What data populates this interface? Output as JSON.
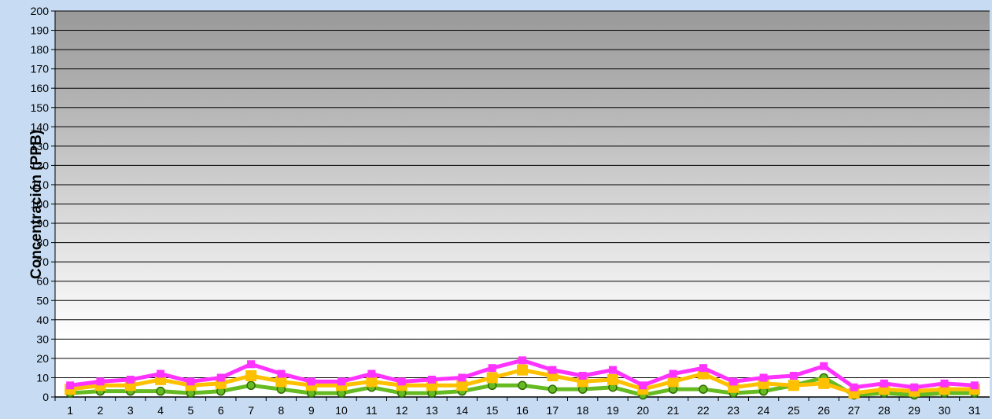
{
  "chart_data": {
    "type": "line",
    "title": "",
    "xlabel": "",
    "ylabel": "Concentración (PPB)",
    "ylim": [
      0,
      200
    ],
    "ytick_step": 10,
    "grid": true,
    "legend": "none",
    "categories": [
      "1",
      "2",
      "3",
      "4",
      "5",
      "6",
      "7",
      "8",
      "9",
      "10",
      "11",
      "12",
      "13",
      "14",
      "15",
      "16",
      "17",
      "18",
      "19",
      "20",
      "21",
      "22",
      "23",
      "24",
      "25",
      "26",
      "27",
      "28",
      "29",
      "30",
      "31"
    ],
    "series": [
      {
        "color": "#ff33ff",
        "marker": "square",
        "values": [
          6,
          8,
          9,
          12,
          8,
          10,
          17,
          12,
          8,
          8,
          12,
          8,
          9,
          10,
          15,
          19,
          14,
          11,
          14,
          6,
          12,
          15,
          8,
          10,
          11,
          16,
          5,
          7,
          5,
          7,
          6
        ]
      },
      {
        "color": "#ffc000",
        "marker": "square",
        "values": [
          4,
          6,
          6,
          9,
          6,
          7,
          11,
          8,
          6,
          6,
          8,
          6,
          6,
          6,
          10,
          14,
          11,
          8,
          9,
          4,
          8,
          12,
          5,
          7,
          6,
          7,
          2,
          4,
          3,
          4,
          4
        ]
      },
      {
        "color": "#66bb22",
        "marker": "circle",
        "values": [
          2,
          3,
          3,
          3,
          2,
          3,
          6,
          4,
          2,
          2,
          5,
          2,
          2,
          3,
          6,
          6,
          4,
          4,
          5,
          1,
          4,
          4,
          2,
          3,
          6,
          10,
          1,
          2,
          1,
          2,
          2
        ]
      }
    ],
    "colors": {
      "background": "#c7dcf3",
      "grid": "#000000",
      "plot_top": "#999999",
      "plot_bottom": "#ffffff"
    }
  }
}
